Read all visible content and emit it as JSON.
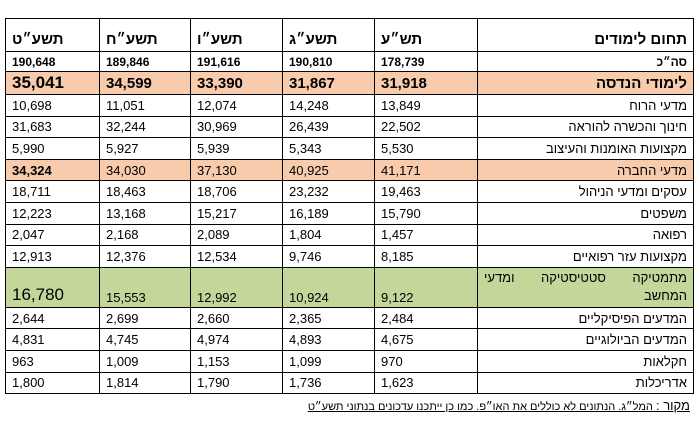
{
  "header": {
    "label": "תחום לימודים",
    "years": [
      "תש״ע",
      "תשע״ג",
      "תשע״ו",
      "תשע״ח",
      "תשע״ט"
    ]
  },
  "rows": [
    {
      "label": "סה״כ",
      "values": [
        "178,739",
        "190,810",
        "191,616",
        "189,846",
        "190,648"
      ],
      "type": "sum"
    },
    {
      "label": "לימודי הנדסה",
      "values": [
        "31,918",
        "31,867",
        "33,390",
        "34,599",
        "35,041"
      ],
      "type": "eng"
    },
    {
      "label": "מדעי הרוח",
      "values": [
        "13,849",
        "14,248",
        "12,074",
        "11,051",
        "10,698"
      ]
    },
    {
      "label": "חינוך והכשרה להוראה",
      "values": [
        "22,502",
        "26,439",
        "30,969",
        "32,244",
        "31,683"
      ]
    },
    {
      "label": "מקצועות האומנות והעיצוב",
      "values": [
        "5,530",
        "5,343",
        "5,939",
        "5,927",
        "5,990"
      ]
    },
    {
      "label": "מדעי החברה",
      "values": [
        "41,171",
        "40,925",
        "37,130",
        "34,030",
        "34,324"
      ],
      "type": "soc"
    },
    {
      "label": "עסקים ומדעי הניהול",
      "values": [
        "19,463",
        "23,232",
        "18,706",
        "18,463",
        "18,711"
      ]
    },
    {
      "label": "משפטים",
      "values": [
        "15,790",
        "16,189",
        "15,217",
        "13,168",
        "12,223"
      ]
    },
    {
      "label": "רפואה",
      "values": [
        "1,457",
        "1,804",
        "2,089",
        "2,168",
        "2,047"
      ]
    },
    {
      "label": "מקצועות עזר רפואיים",
      "values": [
        "8,185",
        "9,746",
        "12,534",
        "12,376",
        "12,913"
      ]
    },
    {
      "label": "מתמטיקה סטטיסטיקה ומדעי המחשב",
      "values": [
        "9,122",
        "10,924",
        "12,992",
        "15,553",
        "16,780"
      ],
      "type": "math"
    },
    {
      "label": "המדעים הפיסיקליים",
      "values": [
        "2,484",
        "2,365",
        "2,660",
        "2,699",
        "2,644"
      ]
    },
    {
      "label": "המדעים הביולוגיים",
      "values": [
        "4,675",
        "4,893",
        "4,974",
        "4,745",
        "4,831"
      ]
    },
    {
      "label": "חקלאות",
      "values": [
        "970",
        "1,099",
        "1,153",
        "1,009",
        "963"
      ]
    },
    {
      "label": "אדריכלות",
      "values": [
        "1,623",
        "1,736",
        "1,790",
        "1,814",
        "1,800"
      ]
    }
  ],
  "footer": {
    "source": "מקור :",
    "text": "המל״ג. הנתונים לא כוללים את האו״פ. כמו כן ייתכנו עדכונים בנתוני תשע״ט"
  },
  "colors": {
    "engineering": "#f8cbad",
    "social": "#f8cbad",
    "math": "#c4d79b"
  }
}
